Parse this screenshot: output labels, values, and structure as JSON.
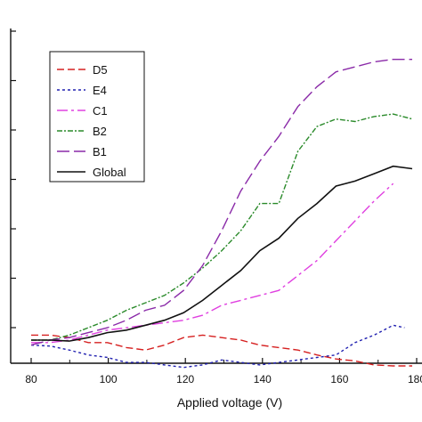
{
  "chart_data": {
    "type": "line",
    "xlabel": "Applied voltage (V)",
    "ylabel": "",
    "xlim": [
      79,
      180
    ],
    "ylim": [
      -0.6,
      6.1
    ],
    "x_ticks": [
      80,
      100,
      120,
      140,
      160,
      180
    ],
    "x_tick_labels": [
      "80",
      "100",
      "120",
      "140",
      "160",
      "180"
    ],
    "y_ticks": [
      0,
      1,
      2,
      3,
      4,
      5,
      6
    ],
    "grid": false,
    "legend": "top-left",
    "series": [
      {
        "name": "D5",
        "color": "#d62020",
        "dash": "8,4",
        "x": [
          80,
          85,
          90,
          95,
          100,
          105,
          110,
          115,
          120,
          125,
          130,
          135,
          140,
          145,
          150,
          155,
          160,
          165,
          170,
          175,
          180
        ],
        "y": [
          0.1,
          0.1,
          0.05,
          -0.05,
          -0.05,
          -0.15,
          -0.2,
          -0.1,
          0.05,
          0.1,
          0.05,
          0.0,
          -0.1,
          -0.15,
          -0.2,
          -0.3,
          -0.38,
          -0.42,
          -0.5,
          -0.52,
          -0.52
        ]
      },
      {
        "name": "E4",
        "color": "#2020b0",
        "dash": "3,3",
        "x": [
          80,
          85,
          90,
          95,
          100,
          105,
          110,
          115,
          120,
          125,
          130,
          135,
          140,
          145,
          150,
          155,
          160,
          165,
          170,
          175,
          178
        ],
        "y": [
          -0.1,
          -0.12,
          -0.2,
          -0.3,
          -0.35,
          -0.45,
          -0.45,
          -0.5,
          -0.55,
          -0.5,
          -0.4,
          -0.45,
          -0.5,
          -0.45,
          -0.4,
          -0.35,
          -0.3,
          -0.05,
          0.1,
          0.3,
          0.25
        ]
      },
      {
        "name": "C1",
        "color": "#e040e0",
        "dash": "12,4,3,4",
        "x": [
          80,
          85,
          90,
          95,
          100,
          105,
          110,
          115,
          120,
          125,
          130,
          135,
          140,
          145,
          150,
          155,
          160,
          165,
          170,
          175
        ],
        "y": [
          -0.05,
          -0.05,
          0.0,
          0.1,
          0.2,
          0.25,
          0.3,
          0.35,
          0.4,
          0.5,
          0.7,
          0.8,
          0.9,
          1.0,
          1.3,
          1.6,
          2.0,
          2.4,
          2.8,
          3.15
        ]
      },
      {
        "name": "B2",
        "color": "#2a8a2a",
        "dash": "6,2,2,2",
        "x": [
          80,
          85,
          90,
          95,
          100,
          105,
          110,
          115,
          120,
          125,
          130,
          135,
          140,
          145,
          150,
          155,
          160,
          165,
          170,
          175,
          180
        ],
        "y": [
          0.0,
          0.0,
          0.1,
          0.25,
          0.4,
          0.6,
          0.75,
          0.9,
          1.15,
          1.45,
          1.8,
          2.2,
          2.75,
          2.75,
          3.8,
          4.3,
          4.45,
          4.4,
          4.5,
          4.55,
          4.45
        ]
      },
      {
        "name": "B1",
        "color": "#8a2aa8",
        "dash": "14,5",
        "x": [
          80,
          85,
          90,
          95,
          100,
          105,
          110,
          115,
          120,
          125,
          130,
          135,
          140,
          145,
          150,
          155,
          160,
          165,
          170,
          175,
          180
        ],
        "y": [
          -0.1,
          0.0,
          0.05,
          0.15,
          0.25,
          0.4,
          0.6,
          0.7,
          1.0,
          1.5,
          2.2,
          3.0,
          3.6,
          4.1,
          4.7,
          5.1,
          5.4,
          5.5,
          5.6,
          5.65,
          5.65
        ]
      },
      {
        "name": "Global",
        "color": "#111111",
        "dash": "",
        "x": [
          80,
          85,
          90,
          95,
          100,
          105,
          110,
          115,
          120,
          125,
          130,
          135,
          140,
          145,
          150,
          155,
          160,
          165,
          170,
          175,
          180
        ],
        "y": [
          0.0,
          0.0,
          -0.02,
          0.05,
          0.15,
          0.2,
          0.3,
          0.4,
          0.55,
          0.8,
          1.1,
          1.4,
          1.8,
          2.05,
          2.45,
          2.75,
          3.1,
          3.2,
          3.35,
          3.5,
          3.45
        ]
      }
    ]
  }
}
